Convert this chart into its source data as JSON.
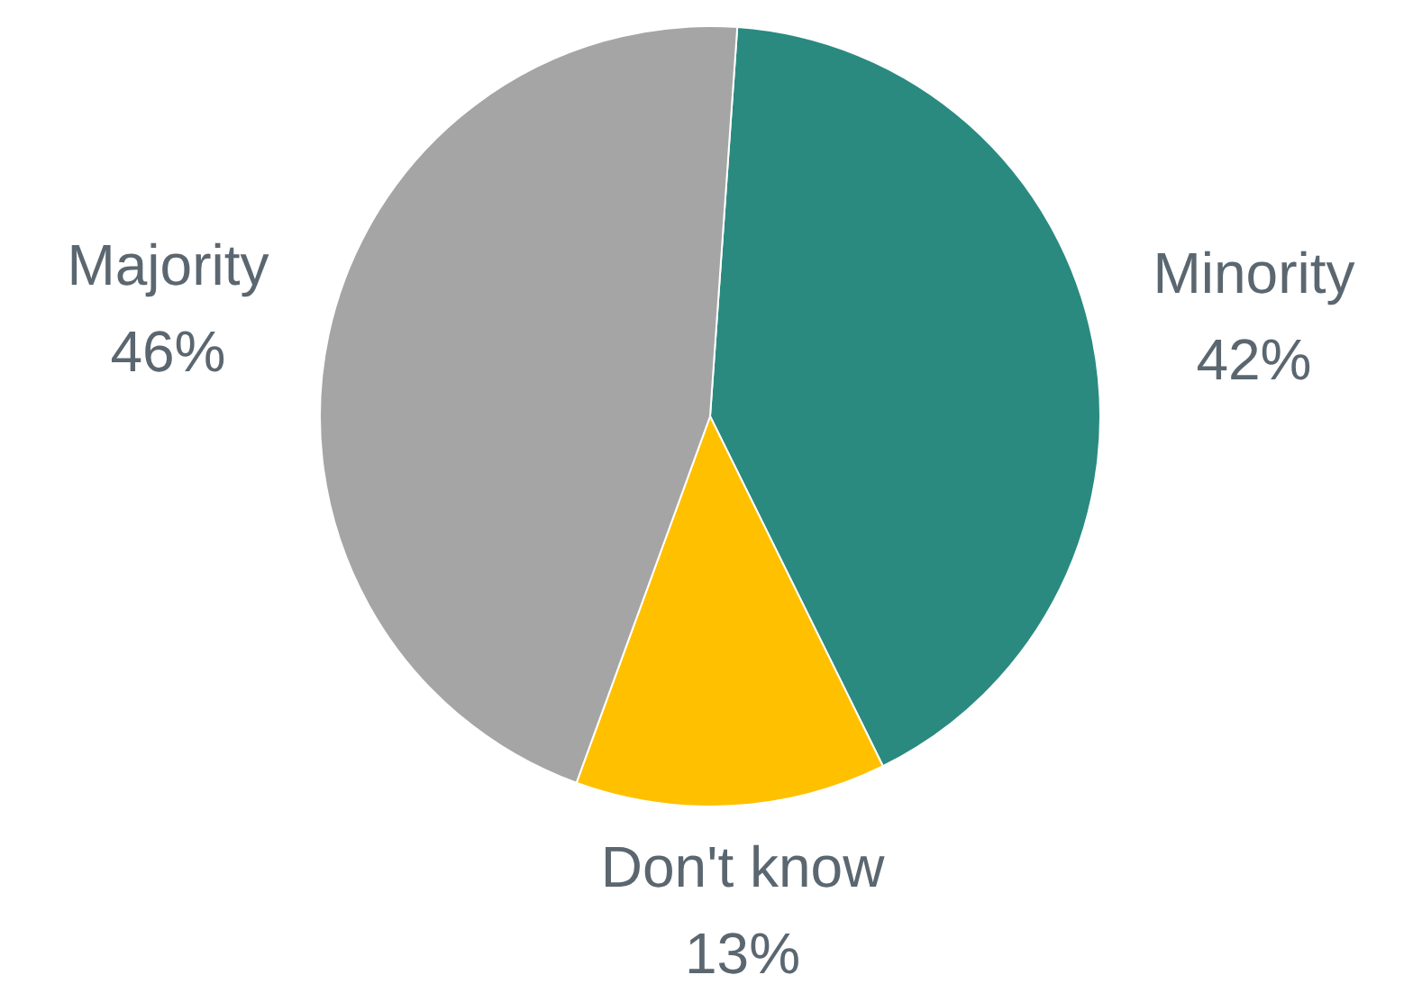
{
  "chart_data": {
    "type": "pie",
    "categories": [
      "Minority",
      "Don't know",
      "Majority"
    ],
    "values": [
      42,
      13,
      46
    ],
    "colors": [
      "#2a8a80",
      "#ffc000",
      "#a5a5a5"
    ],
    "value_labels": [
      "42%",
      "13%",
      "46%"
    ],
    "legend": false
  }
}
